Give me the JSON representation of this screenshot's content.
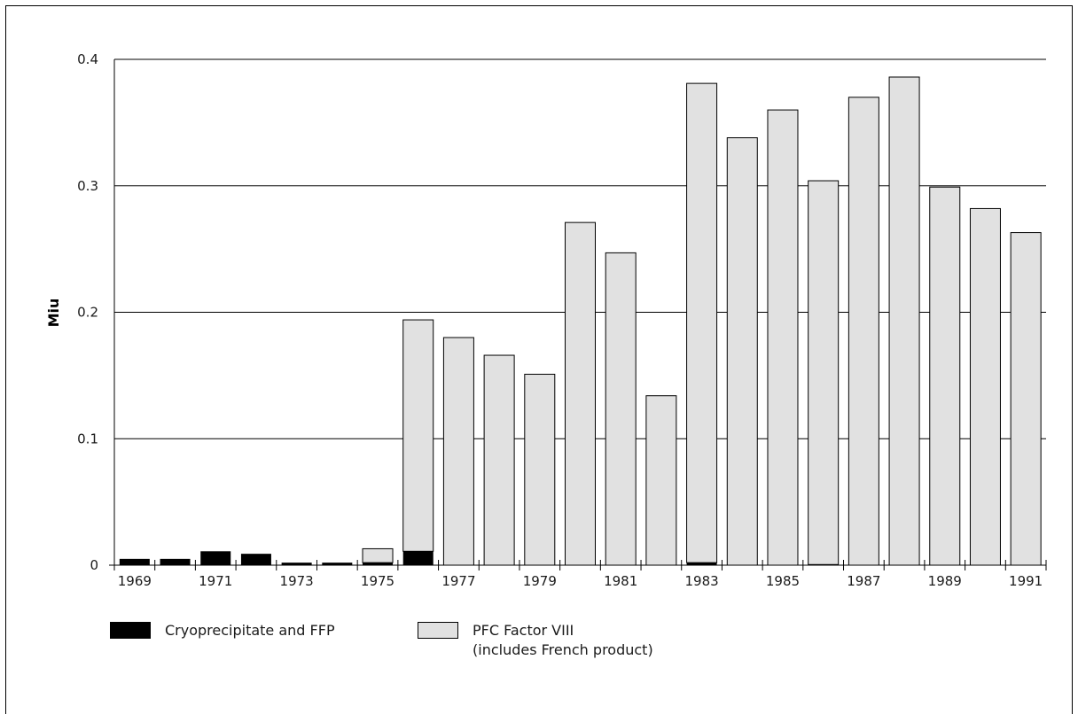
{
  "chart_data": {
    "type": "bar",
    "stacked": true,
    "ylabel": "Miu",
    "xlabel": "",
    "ylim": [
      0,
      0.4
    ],
    "yticks": [
      "0",
      "0.1",
      "0.2",
      "0.3",
      "0.4"
    ],
    "grid": true,
    "legend_position": "bottom-left",
    "categories": [
      "1969",
      "1970",
      "1971",
      "1972",
      "1973",
      "1974",
      "1975",
      "1976",
      "1977",
      "1978",
      "1979",
      "1980",
      "1981",
      "1982",
      "1983",
      "1984",
      "1985",
      "1986",
      "1987",
      "1988",
      "1989",
      "1990",
      "1991"
    ],
    "x_tick_labels": [
      "1969",
      "",
      "1971",
      "",
      "1973",
      "",
      "1975",
      "",
      "1977",
      "",
      "1979",
      "",
      "1981",
      "",
      "1983",
      "",
      "1985",
      "",
      "1987",
      "",
      "1989",
      "",
      "1991"
    ],
    "series": [
      {
        "name": "Cryoprecipitate and FFP",
        "color": "#000000",
        "values": [
          0.005,
          0.005,
          0.011,
          0.009,
          0.002,
          0.002,
          0.002,
          0.011,
          0,
          0,
          0,
          0,
          0,
          0,
          0.002,
          0,
          0,
          0.0005,
          0,
          0,
          0,
          0,
          0
        ]
      },
      {
        "name": "PFC Factor VIII\n(includes French product)",
        "color": "#e1e1e1",
        "values": [
          0,
          0,
          0,
          0,
          0,
          0,
          0.011,
          0.183,
          0.18,
          0.166,
          0.151,
          0.271,
          0.247,
          0.134,
          0.379,
          0.338,
          0.36,
          0.3035,
          0.37,
          0.386,
          0.299,
          0.282,
          0.263
        ]
      }
    ]
  },
  "legend": {
    "item1_label": "Cryoprecipitate and FFP",
    "item2_line1": "PFC Factor VIII",
    "item2_line2": "(includes French product)"
  }
}
